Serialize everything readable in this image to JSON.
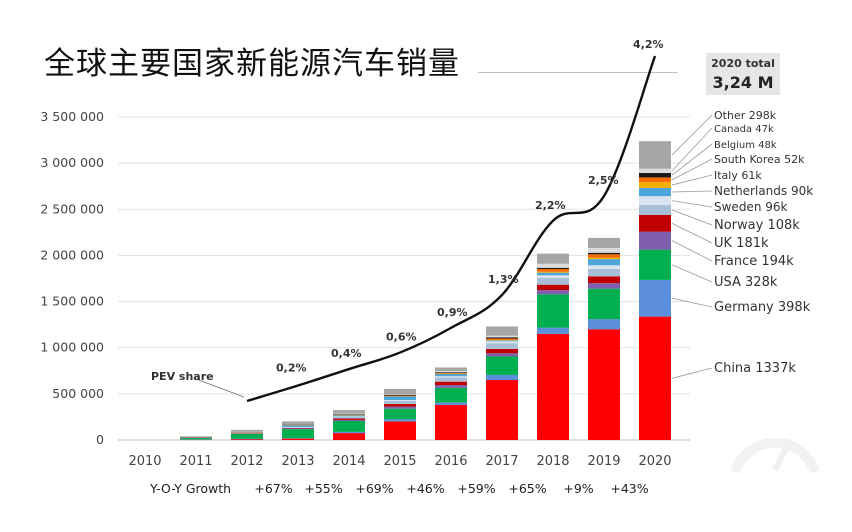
{
  "chart_data": {
    "type": "bar",
    "stacked": true,
    "title": "全球主要国家新能源汽车销量",
    "categories": [
      "2010",
      "2011",
      "2012",
      "2013",
      "2014",
      "2015",
      "2016",
      "2017",
      "2018",
      "2019",
      "2020"
    ],
    "ylim": [
      0,
      3500000
    ],
    "yticks": [
      0,
      500000,
      1000000,
      1500000,
      2000000,
      2500000,
      3000000,
      3500000
    ],
    "ytick_labels": [
      "0",
      "500 000",
      "1 000 000",
      "1 500 000",
      "2 000 000",
      "2 500 000",
      "3 000 000",
      "3 500 000"
    ],
    "series": [
      {
        "name": "China",
        "color": "#ff0000",
        "values": [
          0,
          5000,
          10000,
          15000,
          75000,
          200000,
          380000,
          650000,
          1150000,
          1200000,
          1337000
        ]
      },
      {
        "name": "Germany",
        "color": "#5b8fdb",
        "values": [
          0,
          2000,
          3000,
          6000,
          13000,
          24000,
          25000,
          55000,
          68000,
          110000,
          398000
        ]
      },
      {
        "name": "USA",
        "color": "#00b050",
        "values": [
          0,
          18000,
          52000,
          97000,
          118000,
          115000,
          160000,
          200000,
          360000,
          330000,
          328000
        ]
      },
      {
        "name": "France",
        "color": "#7f5fae",
        "values": [
          0,
          2000,
          6000,
          9000,
          12000,
          23000,
          30000,
          35000,
          45000,
          60000,
          194000
        ]
      },
      {
        "name": "UK",
        "color": "#c00000",
        "values": [
          0,
          1000,
          2000,
          4000,
          15000,
          28000,
          37000,
          47000,
          60000,
          73000,
          181000
        ]
      },
      {
        "name": "Norway",
        "color": "#a9bfd8",
        "values": [
          0,
          2000,
          4000,
          8000,
          19000,
          34000,
          45000,
          62000,
          73000,
          80000,
          108000
        ]
      },
      {
        "name": "Sweden",
        "color": "#d9e4f0",
        "values": [
          0,
          1000,
          1000,
          2000,
          4000,
          9000,
          14000,
          20000,
          29000,
          40000,
          96000
        ]
      },
      {
        "name": "Netherlands",
        "color": "#4ea5d9",
        "values": [
          0,
          1000,
          5000,
          22000,
          15000,
          43000,
          25000,
          11000,
          28000,
          67000,
          90000
        ]
      },
      {
        "name": "Italy",
        "color": "#f4b000",
        "values": [
          0,
          1000,
          1000,
          2000,
          2000,
          3000,
          3000,
          5000,
          10000,
          17000,
          61000
        ]
      },
      {
        "name": "South Korea",
        "color": "#ff6b00",
        "values": [
          0,
          1000,
          1000,
          2000,
          2000,
          3000,
          5000,
          14000,
          30000,
          35000,
          52000
        ]
      },
      {
        "name": "Belgium",
        "color": "#1a1a1a",
        "values": [
          0,
          1000,
          1000,
          2000,
          4000,
          9000,
          10000,
          14000,
          13000,
          17000,
          48000
        ]
      },
      {
        "name": "Canada",
        "color": "#dcdcdc",
        "values": [
          0,
          1000,
          2000,
          3000,
          5000,
          7000,
          12000,
          17000,
          44000,
          51000,
          47000
        ]
      },
      {
        "name": "Other",
        "color": "#a6a6a6",
        "values": [
          0,
          5000,
          22000,
          30000,
          40000,
          55000,
          40000,
          100000,
          110000,
          110000,
          298000
        ]
      }
    ],
    "legend_labels": [
      "China  1337k",
      "Germany  398k",
      "USA  328k",
      "France  194k",
      "UK  181k",
      "Norway  108k",
      "Sweden  96k",
      "Netherlands  90k",
      "Italy  61k",
      "South Korea  52k",
      "Belgium  48k",
      "Canada  47k",
      "Other  298k"
    ],
    "pev_share": {
      "label": "PEV share",
      "categories": [
        "2012",
        "2013",
        "2014",
        "2015",
        "2016",
        "2017",
        "2018",
        "2019",
        "2020"
      ],
      "values": [
        0.2,
        0.2,
        0.4,
        0.6,
        0.9,
        1.3,
        2.2,
        2.5,
        4.2
      ],
      "labels": [
        "",
        "0,2%",
        "0,4%",
        "0,6%",
        "0,9%",
        "1,3%",
        "2,2%",
        "2,5%",
        "4,2%"
      ]
    },
    "growth": {
      "label": "Y-O-Y Growth",
      "values": [
        "+67%",
        "+55%",
        "+69%",
        "+46%",
        "+59%",
        "+65%",
        "+9%",
        "+43%"
      ]
    },
    "total": {
      "label": "2020 total",
      "value": "3,24 M"
    }
  }
}
